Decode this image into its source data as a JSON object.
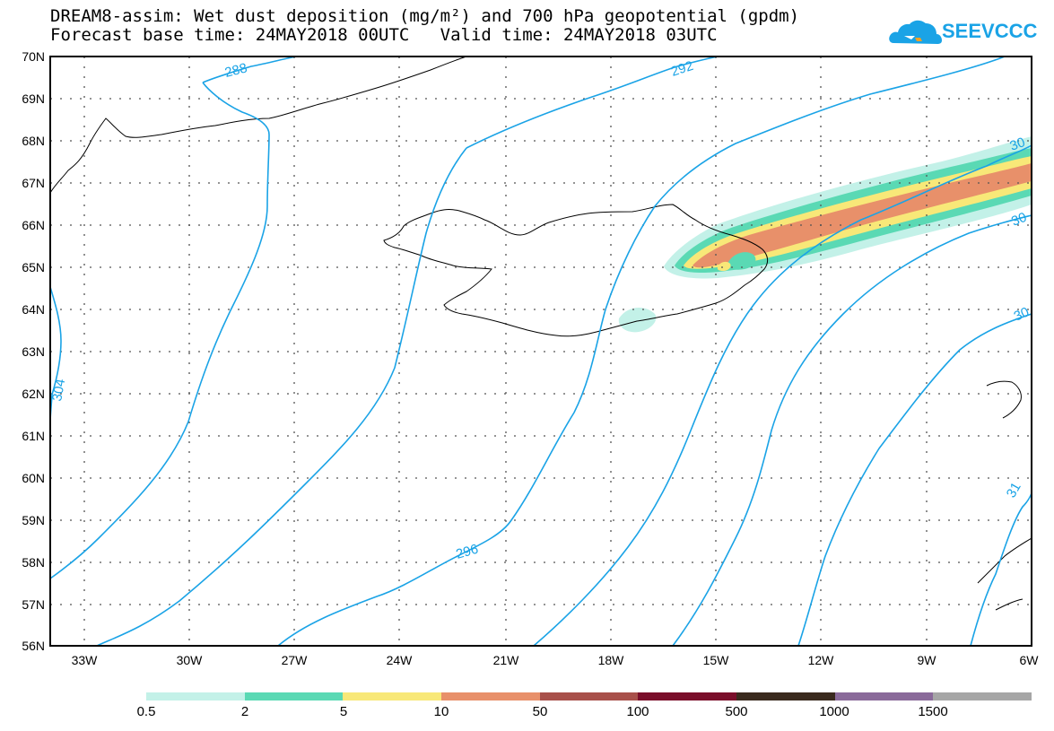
{
  "header": {
    "title_line1": "DREAM8-assim: Wet dust deposition (mg/m²) and 700 hPa geopotential (gpdm)",
    "title_line2": "Forecast base time: 24MAY2018 00UTC   Valid time: 24MAY2018 03UTC",
    "logo_text": "SEEVCCC"
  },
  "map": {
    "lat_labels": [
      "70N",
      "69N",
      "68N",
      "67N",
      "66N",
      "65N",
      "64N",
      "63N",
      "62N",
      "61N",
      "60N",
      "59N",
      "58N",
      "57N",
      "56N"
    ],
    "lon_labels": [
      "33W",
      "30W",
      "27W",
      "24W",
      "21W",
      "18W",
      "15W",
      "12W",
      "9W",
      "6W"
    ],
    "contour_labels": [
      "288",
      "292",
      "296",
      "30",
      "30",
      "30",
      "31",
      "304"
    ],
    "colors": {
      "contour": "#1aa3e6",
      "coast": "#000000",
      "grid": "#555555"
    }
  },
  "legend": {
    "labels": [
      "0.5",
      "2",
      "5",
      "10",
      "50",
      "100",
      "500",
      "1000",
      "1500"
    ],
    "colors": [
      "#c3f1e8",
      "#5ad9b4",
      "#f8e878",
      "#e8906a",
      "#a8504a",
      "#7a0e2a",
      "#3a2a1e",
      "#8a6a9a",
      "#a6a6a6"
    ]
  }
}
